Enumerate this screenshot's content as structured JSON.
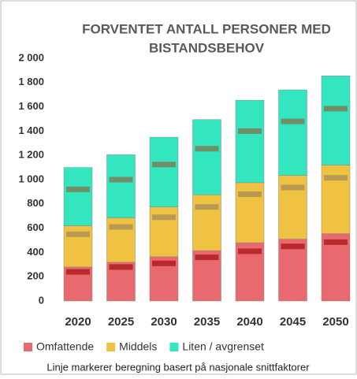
{
  "chart_data": {
    "type": "stacked_bar",
    "title": [
      "FORVENTET ANTALL PERSONER MED",
      "BISTANDSBEHOV"
    ],
    "categories": [
      "2020",
      "2025",
      "2030",
      "2035",
      "2040",
      "2045",
      "2050"
    ],
    "series": [
      {
        "name": "Omfattende",
        "color": "#e86a6e",
        "marker_color": "#b82a2c",
        "values": [
          280,
          320,
          365,
          415,
          480,
          510,
          555
        ],
        "markers": [
          240,
          280,
          310,
          360,
          410,
          450,
          485
        ]
      },
      {
        "name": "Middels",
        "color": "#f0c242",
        "marker_color": "#b89a52",
        "values": [
          340,
          365,
          410,
          460,
          495,
          525,
          565
        ],
        "markers": [
          550,
          610,
          690,
          775,
          880,
          935,
          1015
        ]
      },
      {
        "name": "Liten / avgrenset",
        "color": "#33e6c0",
        "marker_color": "#6f8f66",
        "values": [
          480,
          520,
          575,
          620,
          680,
          705,
          735
        ],
        "markers": [
          920,
          1000,
          1125,
          1255,
          1400,
          1480,
          1585
        ]
      }
    ],
    "ylim": [
      0,
      2000
    ],
    "yticks": [
      0,
      200,
      400,
      600,
      800,
      {
        "value": 1000,
        "label": "1 000"
      },
      {
        "value": 1200,
        "label": "1 200"
      },
      {
        "value": 1400,
        "label": "1 400"
      },
      {
        "value": 1600,
        "label": "1 600"
      },
      {
        "value": 1800,
        "label": "1 800"
      },
      {
        "value": 2000,
        "label": "2 000"
      }
    ],
    "caption": "Linje markerer beregning basert på nasjonale snittfaktorer"
  }
}
